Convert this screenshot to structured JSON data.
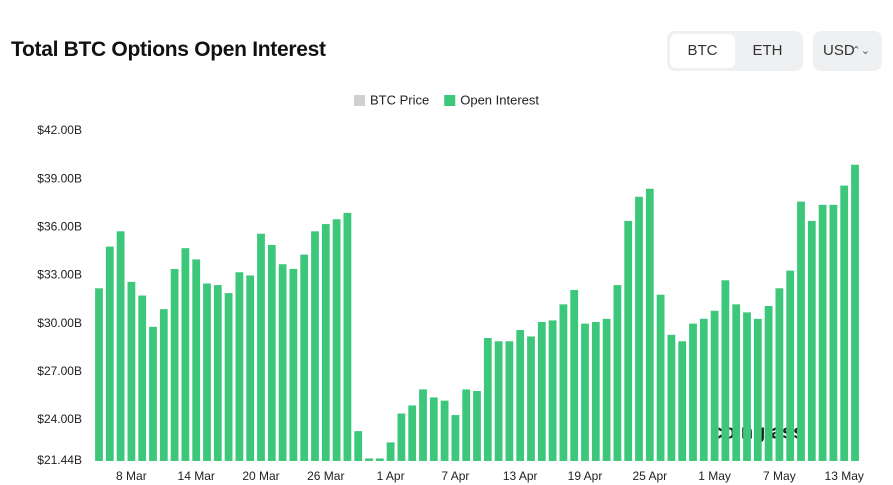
{
  "header": {
    "title": "Total BTC Options Open Interest",
    "toggle": [
      "BTC",
      "ETH"
    ],
    "currency": "USD"
  },
  "chart_data": {
    "type": "bar",
    "legend": [
      {
        "name": "BTC Price",
        "color": "#d0d0d0"
      },
      {
        "name": "Open Interest",
        "color": "#3cc77a"
      }
    ],
    "color": "#3cc77a",
    "categories": [
      null,
      null,
      null,
      "8 Mar",
      null,
      null,
      null,
      null,
      null,
      "14 Mar",
      null,
      null,
      null,
      null,
      null,
      "20 Mar",
      null,
      null,
      null,
      null,
      null,
      "26 Mar",
      null,
      null,
      null,
      null,
      null,
      "1 Apr",
      null,
      null,
      null,
      null,
      null,
      "7 Apr",
      null,
      null,
      null,
      null,
      null,
      "13 Apr",
      null,
      null,
      null,
      null,
      null,
      "19 Apr",
      null,
      null,
      null,
      null,
      null,
      "25 Apr",
      null,
      null,
      null,
      null,
      null,
      "1 May",
      null,
      null,
      null,
      null,
      null,
      "7 May",
      null,
      null,
      null,
      null,
      null,
      "13 May",
      null
    ],
    "values": [
      32.2,
      34.8,
      35.75,
      32.6,
      31.75,
      29.8,
      30.9,
      33.4,
      34.7,
      34.0,
      32.5,
      32.4,
      31.9,
      33.2,
      33.0,
      35.6,
      34.9,
      33.7,
      33.4,
      34.3,
      35.75,
      36.2,
      36.5,
      36.9,
      23.3,
      21.6,
      21.6,
      22.6,
      24.4,
      24.9,
      25.9,
      25.4,
      25.2,
      24.3,
      25.9,
      25.8,
      29.1,
      28.9,
      28.9,
      29.6,
      29.2,
      30.1,
      30.2,
      31.2,
      32.1,
      30.0,
      30.1,
      30.3,
      32.4,
      36.4,
      37.9,
      38.4,
      31.8,
      29.3,
      28.9,
      30.0,
      30.3,
      30.8,
      32.7,
      31.2,
      30.7,
      30.3,
      31.1,
      32.2,
      33.3,
      37.6,
      36.4,
      37.4,
      37.4,
      38.6,
      39.9
    ],
    "ylim": [
      21.44,
      42
    ],
    "yticks": [
      {
        "value": 21.44,
        "label": "$21.44B"
      },
      {
        "value": 24,
        "label": "$24.00B"
      },
      {
        "value": 27,
        "label": "$27.00B"
      },
      {
        "value": 30,
        "label": "$30.00B"
      },
      {
        "value": 33,
        "label": "$33.00B"
      },
      {
        "value": 36,
        "label": "$36.00B"
      },
      {
        "value": 39,
        "label": "$39.00B"
      },
      {
        "value": 42,
        "label": "$42.00B"
      }
    ],
    "watermark": "coinglass"
  }
}
